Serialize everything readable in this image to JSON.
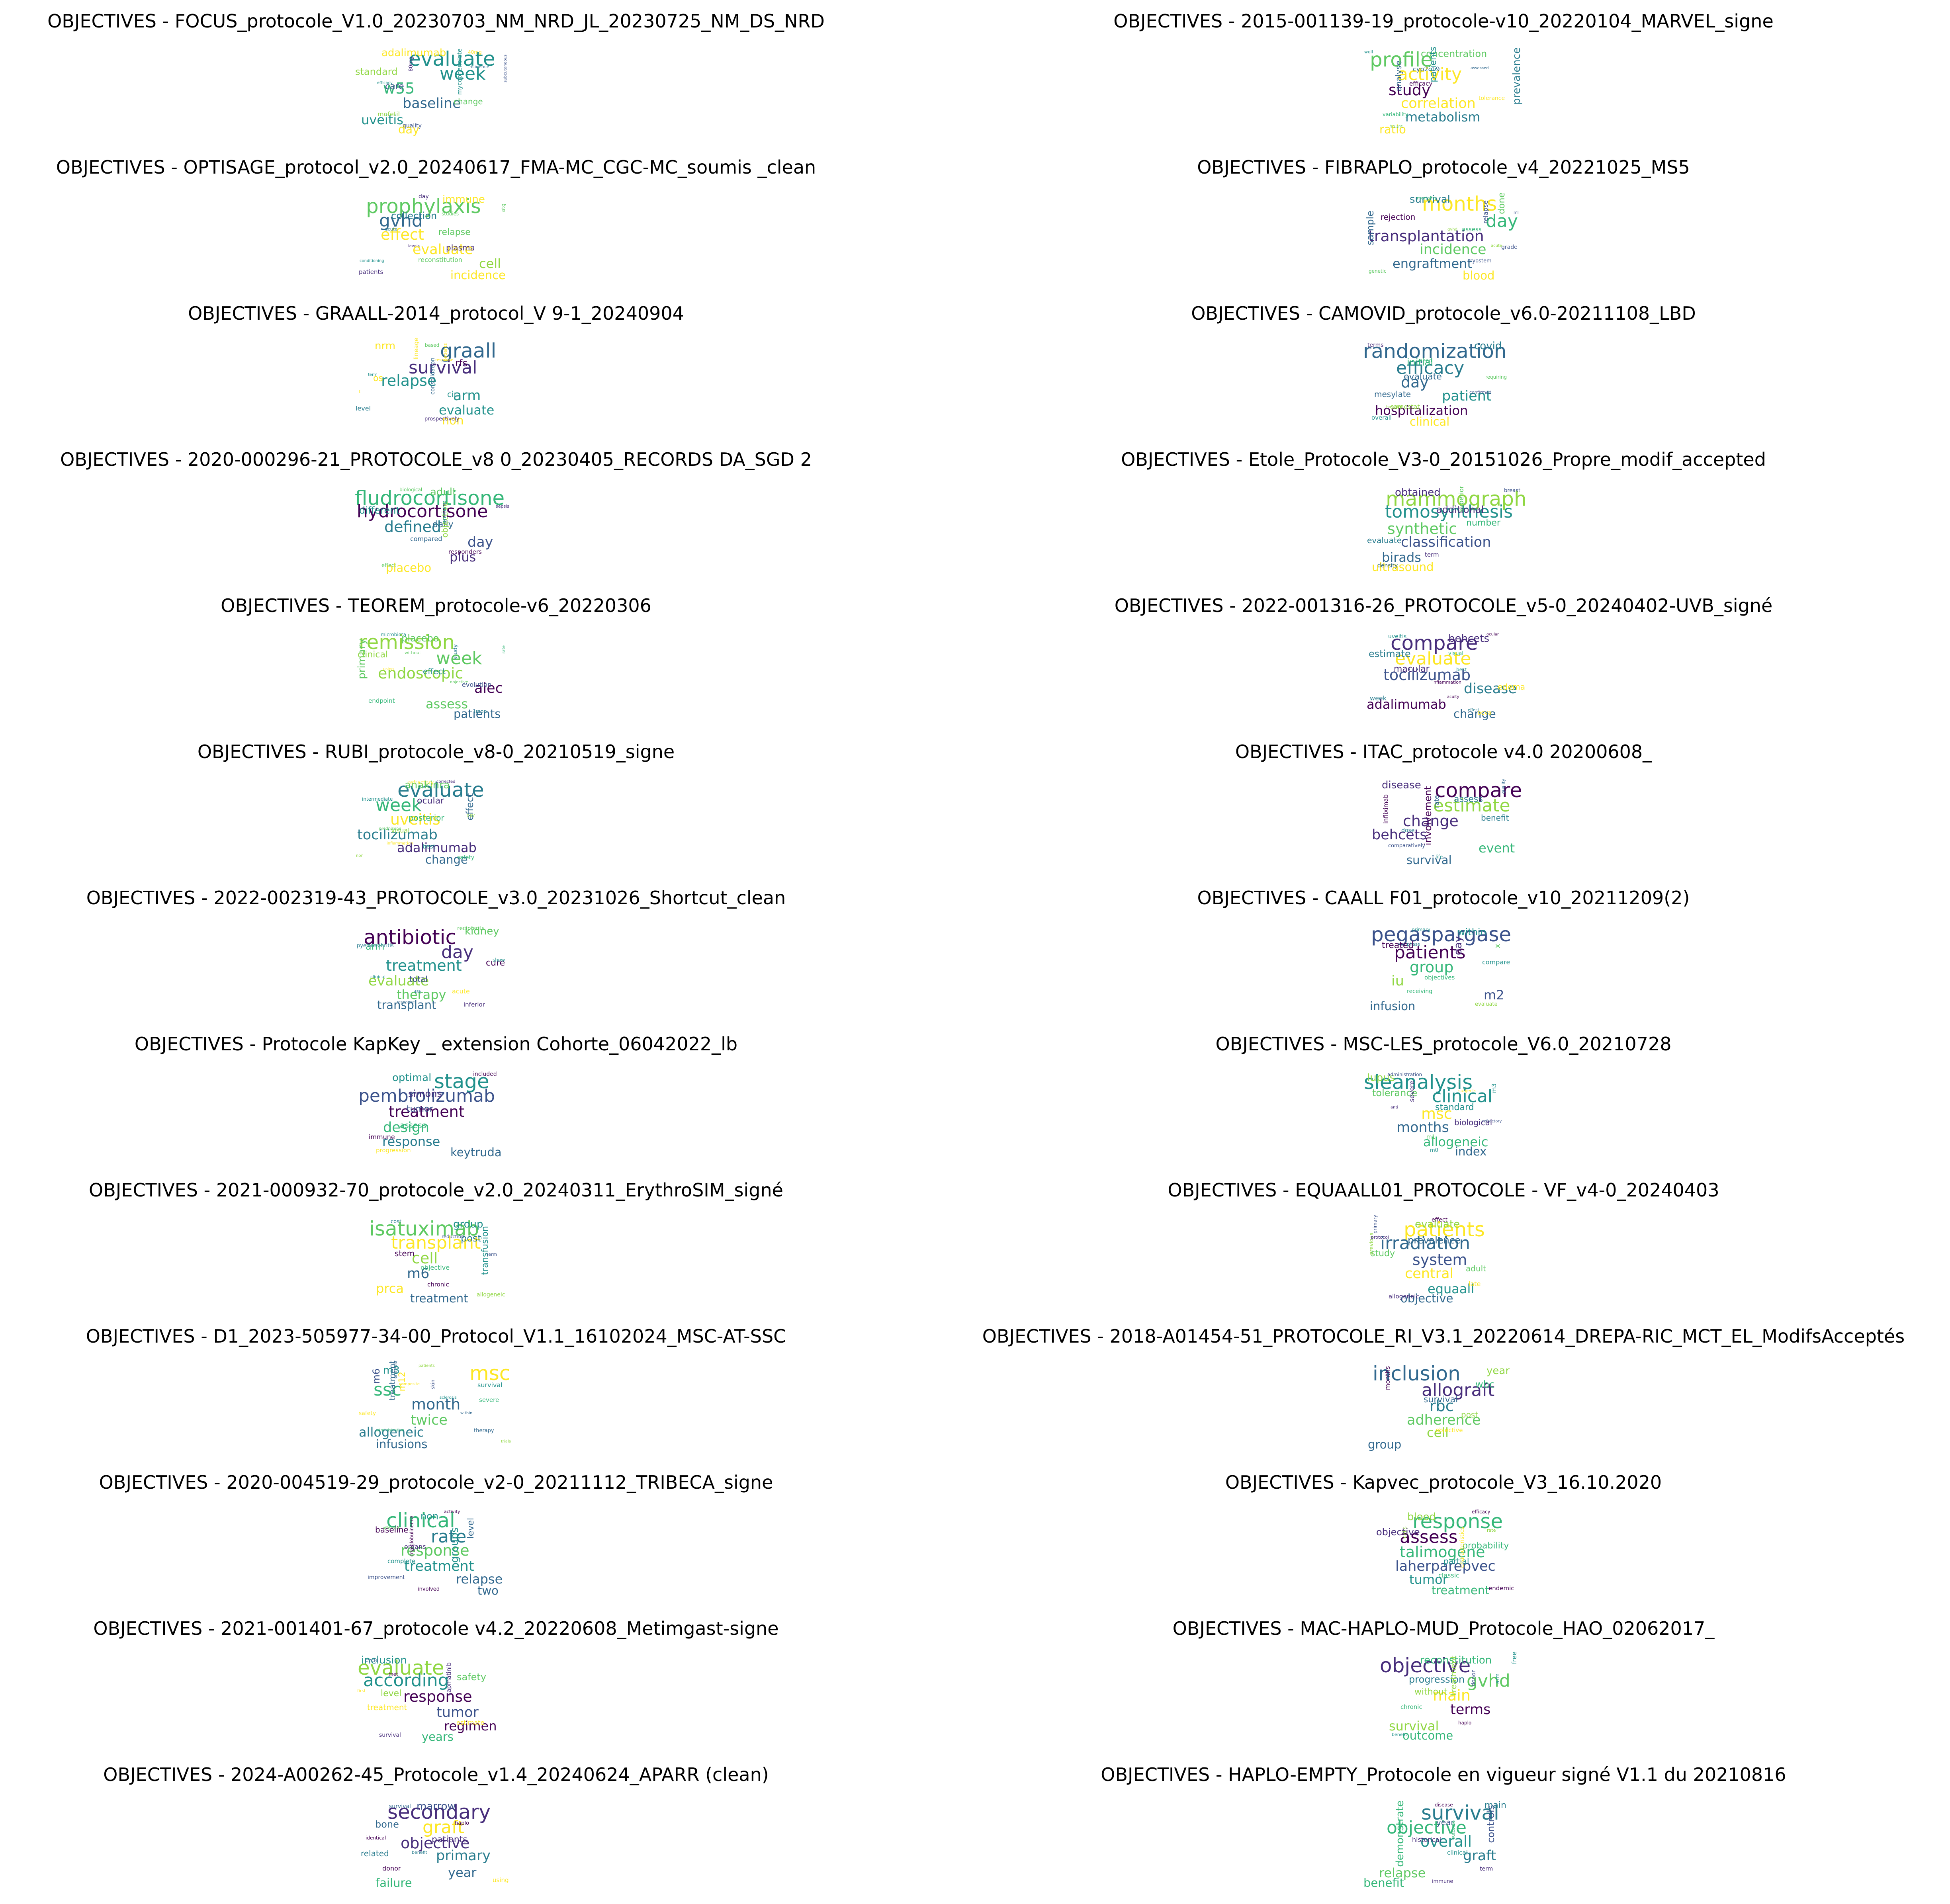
{
  "figure": {
    "panels": [
      {
        "title": "OBJECTIVES - FOCUS_protocole_V1.0_20230703_NM_NRD_JL_20230725_NM_DS_NRD",
        "words": [
          "evaluate",
          "week",
          "w55",
          "baseline",
          "uveitis",
          "day",
          "adalimumab",
          "standard",
          "care",
          "change",
          "mofetil",
          "mycophenolate",
          "quality",
          "80mg",
          "40mg",
          "incidence",
          "efficacy",
          "subcutaneous"
        ]
      },
      {
        "title": "OBJECTIVES - 2015-001139-19_protocole-v10_20220104_MARVEL_signe",
        "words": [
          "profile",
          "activity",
          "study",
          "correlation",
          "metabolism",
          "ratio",
          "prevalence",
          "concentration",
          "patients",
          "analyse",
          "cyp2c19",
          "efficacy",
          "tolerance",
          "variability",
          "hours",
          "well",
          "assessed"
        ]
      },
      {
        "title": "OBJECTIVES - OPTISAGE_protocol_v2.0_20240617_FMA-MC_CGC-MC_soumis _clean",
        "words": [
          "prophylaxis",
          "gvhd",
          "effect",
          "evaluate",
          "cell",
          "incidence",
          "immune",
          "collection",
          "relapse",
          "plasma",
          "reconstitution",
          "patients",
          "day",
          "atg",
          "studies",
          "acute",
          "levels",
          "conditioning"
        ]
      },
      {
        "title": "OBJECTIVES - FIBRAPLO_protocole_v4_20221025_MS5",
        "words": [
          "months",
          "day",
          "transplantation",
          "incidence",
          "engraftment",
          "blood",
          "survival",
          "sample",
          "done",
          "rejection",
          "relapse",
          "assess",
          "grade",
          "cryostem",
          "genetic",
          "mortality",
          "ml",
          "gvhd",
          "acute"
        ]
      },
      {
        "title": "OBJECTIVES - GRAALL-2014_protocol_V 9-1_20240904",
        "words": [
          "graall",
          "survival",
          "relapse",
          "arm",
          "evaluate",
          "non",
          "nrm",
          "rfs",
          "os",
          "cir",
          "level",
          "lineage",
          "consolidation",
          "prospectively",
          "based",
          "patients",
          "response",
          "term",
          "t"
        ]
      },
      {
        "title": "OBJECTIVES - CAMOVID_protocole_v6.0-20211108_LBD",
        "words": [
          "randomization",
          "efficacy",
          "day",
          "patient",
          "hospitalization",
          "clinical",
          "covid",
          "initial",
          "evaluate",
          "mesylate",
          "camostat",
          "overall",
          "terms",
          "need",
          "requiring",
          "confirmed",
          "hospital"
        ]
      },
      {
        "title": "OBJECTIVES - 2020-000296-21_PROTOCOLE_v8 0_20230405_RECORDS DA_SGD 2",
        "words": [
          "fludrocortisone",
          "hydrocortisone",
          "defined",
          "day",
          "plus",
          "placebo",
          "adult",
          "different",
          "daily",
          "objective",
          "compared",
          "responders",
          "immune",
          "effect",
          "biological",
          "sepsis"
        ]
      },
      {
        "title": "OBJECTIVES - Etole_Protocole_V3-0_20151026_Propre_modif_accepted",
        "words": [
          "mammography",
          "tomosynthesis",
          "synthetic",
          "classification",
          "birads",
          "ultrasound",
          "obtained",
          "additional",
          "number",
          "evaluate",
          "superior",
          "term",
          "density",
          "breast"
        ]
      },
      {
        "title": "OBJECTIVES - TEOREM_protocole-v6_20220306",
        "words": [
          "remission",
          "week",
          "endoscopic",
          "aiec",
          "assess",
          "patients",
          "primary",
          "placebo",
          "clinical",
          "effect",
          "evolution",
          "endpoint",
          "study",
          "upon",
          "microbiota",
          "without",
          "rate",
          "using",
          "objective"
        ]
      },
      {
        "title": "OBJECTIVES - 2022-001316-26_PROTOCOLE_v5-0_20240402-UVB_signé",
        "words": [
          "compare",
          "evaluate",
          "tocilizumab",
          "disease",
          "adalimumab",
          "change",
          "behcets",
          "estimate",
          "macular",
          "edema",
          "week",
          "bcva",
          "uveitis",
          "visual",
          "best",
          "inflammation",
          "acuity",
          "effect",
          "ocular"
        ]
      },
      {
        "title": "OBJECTIVES - RUBI_protocole_v8-0_20210519_signe",
        "words": [
          "evaluate",
          "week",
          "uveitis",
          "tocilizumab",
          "adalimumab",
          "change",
          "anakinra",
          "effect",
          "ocular",
          "posterior",
          "visual",
          "best",
          "safety",
          "refractory",
          "intermediate",
          "day",
          "prednisone",
          "inflammation",
          "non",
          "corrected"
        ]
      },
      {
        "title": "OBJECTIVES - ITAC_protocole v4.0 20200608_",
        "words": [
          "compare",
          "estimate",
          "change",
          "behcets",
          "event",
          "survival",
          "disease",
          "involvement",
          "assess",
          "benefit",
          "rate",
          "infliximab",
          "dose",
          "comparatively",
          "life",
          "quality"
        ]
      },
      {
        "title": "OBJECTIVES - 2022-002319-43_PROTOCOLE_v3.0_20231026_Shortcut_clean",
        "words": [
          "antibiotic",
          "day",
          "treatment",
          "evaluate",
          "therapy",
          "transplant",
          "kidney",
          "arm",
          "cure",
          "total",
          "acute",
          "inferior",
          "recipients",
          "pyelonephritis",
          "show",
          "clinical",
          "48h",
          "response"
        ]
      },
      {
        "title": "OBJECTIVES - CAALL F01_protocole_v10_20211209(2)",
        "words": [
          "pegaspargase",
          "patients",
          "group",
          "iu",
          "m2",
          "infusion",
          "day",
          "within",
          "treated",
          "x",
          "compare",
          "objectives",
          "receiving",
          "evaluate",
          "primary",
          "phase"
        ]
      },
      {
        "title": "OBJECTIVES - Protocole KapKey _ extension Cohorte_06042022_lb",
        "words": [
          "stage",
          "pembrolizumab",
          "treatment",
          "design",
          "response",
          "keytruda",
          "optimal",
          "simons",
          "tumor",
          "assess",
          "immune",
          "progression",
          "included"
        ]
      },
      {
        "title": "OBJECTIVES - MSC-LES_protocole_V6.0_20210728",
        "words": [
          "sleanalysis",
          "clinical",
          "msc",
          "months",
          "allogeneic",
          "index",
          "lupus",
          "tolerance",
          "standard",
          "biological",
          "severe",
          "m3",
          "m1",
          "m0",
          "administration",
          "subjects",
          "anti",
          "refractory"
        ]
      },
      {
        "title": "OBJECTIVES - 2021-000932-70_protocole_v2.0_20240311_ErythroSIM_signé",
        "words": [
          "isatuximab",
          "transplant",
          "cell",
          "m6",
          "prca",
          "treatment",
          "group",
          "post",
          "transfusion",
          "stem",
          "objective",
          "chronic",
          "allogeneic",
          "cost",
          "reduction",
          "term"
        ]
      },
      {
        "title": "OBJECTIVES - EQUAALL01_PROTOCOLE - VF_v4-0_20240403",
        "words": [
          "patients",
          "irradiation",
          "system",
          "central",
          "equaall",
          "objective",
          "evaluate",
          "prevalence",
          "study",
          "adult",
          "late",
          "allogeneic",
          "effect",
          "previous",
          "primary",
          "protocol"
        ]
      },
      {
        "title": "OBJECTIVES - D1_2023-505977-34-00_Protocol_V1.1_16102024_MSC-AT-SSC",
        "words": [
          "msc",
          "ssc",
          "month",
          "twice",
          "allogeneic",
          "infusions",
          "m3",
          "m6",
          "m12",
          "treatment",
          "survival",
          "severe",
          "safety",
          "therapy",
          "skin",
          "analysis",
          "trials",
          "patients",
          "composite",
          "sclerosis",
          "within",
          "administration"
        ]
      },
      {
        "title": "OBJECTIVES - 2018-A01454-51_PROTOCOLE_RI_V3.1_20220614_DREPA-RIC_MCT_EL_ModifsAcceptés",
        "words": [
          "inclusion",
          "allograft",
          "rbc",
          "adherence",
          "cell",
          "group",
          "year",
          "wbc",
          "survival",
          "post",
          "months",
          "objective"
        ]
      },
      {
        "title": "OBJECTIVES - 2020-004519-29_protocole_v2-0_20211112_TRIBECA_signe",
        "words": [
          "clinical",
          "rate",
          "response",
          "treatment",
          "relapse",
          "two",
          "groups",
          "non",
          "level",
          "baseline",
          "organs",
          "complete",
          "improvement",
          "involved",
          "cryoglobulinemia",
          "activity",
          "affected"
        ]
      },
      {
        "title": "OBJECTIVES - Kapvec_protocole_V3_16.10.2020",
        "words": [
          "response",
          "assess",
          "talimogene",
          "laherparepvec",
          "tumor",
          "treatment",
          "blood",
          "objective",
          "probability",
          "partial",
          "classic",
          "endemic",
          "characteristics",
          "cells",
          "efficacy",
          "rate"
        ]
      },
      {
        "title": "OBJECTIVES - 2021-001401-67_protocole v4.2_20220608_Metimgast-signe",
        "words": [
          "evaluate",
          "according",
          "response",
          "tumor",
          "regimen",
          "years",
          "inclusion",
          "safety",
          "level",
          "treatment",
          "estimate",
          "capmatinib",
          "survival",
          "cycle",
          "met",
          "first"
        ]
      },
      {
        "title": "OBJECTIVES - MAC-HAPLO-MUD_Protocole_HAO_02062017_",
        "words": [
          "objective",
          "gvhd",
          "main",
          "terms",
          "survival",
          "outcome",
          "reconstitution",
          "progression",
          "without",
          "treatment",
          "free",
          "chronic",
          "donor",
          "arm",
          "haplo",
          "benefit"
        ]
      },
      {
        "title": "OBJECTIVES - 2024-A00262-45_Protocole_v1.4_20240624_APARR (clean)",
        "words": [
          "secondary",
          "graft",
          "objective",
          "primary",
          "year",
          "failure",
          "marrow",
          "bone",
          "patients",
          "related",
          "donor",
          "using",
          "survival",
          "haplo",
          "identical",
          "benefit"
        ]
      },
      {
        "title": "OBJECTIVES - HAPLO-EMPTY_Protocole en vigueur signé V1.1 du 20210816",
        "words": [
          "survival",
          "objective",
          "overall",
          "graft",
          "relapse",
          "benefit",
          "demonstrate",
          "controls",
          "main",
          "year",
          "historical",
          "clinical",
          "term",
          "immune",
          "disease",
          "outcome"
        ]
      }
    ]
  },
  "palette": [
    "#440154",
    "#3b528b",
    "#21918c",
    "#5ec962",
    "#fde725",
    "#31688e",
    "#35b779",
    "#90d743",
    "#472d7b",
    "#287c8e"
  ]
}
